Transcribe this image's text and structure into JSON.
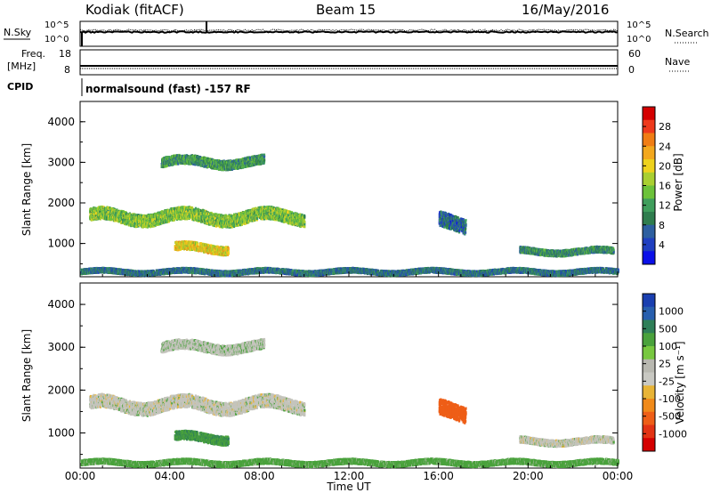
{
  "header": {
    "radar": "Kodiak (fitACF)",
    "beam": "Beam 15",
    "date": "16/May/2016"
  },
  "summary_panels": {
    "nsky": {
      "left_label": "N.Sky",
      "left_ticks": [
        "10^5",
        "10^0"
      ],
      "right_ticks": [
        "10^5",
        "10^0"
      ],
      "right_label": "N.Search"
    },
    "freq": {
      "left_label_1": "Freq.",
      "left_label_2": "[MHz]",
      "left_ticks": [
        "18",
        "8"
      ],
      "right_ticks": [
        "60",
        "0"
      ],
      "right_label": "Nave"
    },
    "cpid": {
      "label": "CPID",
      "text": "normalsound (fast) -157 RF"
    }
  },
  "panels": {
    "power": {
      "ylabel": "Slant Range [km]",
      "colorbar_label": "Power [dB]",
      "colorbar_ticks": [
        "28",
        "24",
        "20",
        "16",
        "12",
        "8",
        "4"
      ],
      "colorbar_colors": [
        "#d40000",
        "#ee3a1c",
        "#f07d14",
        "#f3a81e",
        "#eed21d",
        "#a9cf31",
        "#6cc23a",
        "#3f9e5c",
        "#2f7d4e",
        "#2d5fa0",
        "#1f3fc0",
        "#0b10e8"
      ]
    },
    "velocity": {
      "ylabel": "Slant Range [km]",
      "colorbar_label": "Velocity [m s⁻¹]",
      "colorbar_ticks": [
        "1000",
        "500",
        "100",
        "25",
        "-25",
        "-100",
        "-500",
        "-1000"
      ],
      "colorbar_colors": [
        "#1a3fb0",
        "#285fae",
        "#2f7f58",
        "#4aa23c",
        "#78c840",
        "#b8b8b0",
        "#c8c8c2",
        "#e8b436",
        "#f08a1a",
        "#ee5e17",
        "#e23314",
        "#d40000"
      ]
    }
  },
  "xaxis": {
    "label": "Time UT",
    "ticks": [
      "00:00",
      "04:00",
      "08:00",
      "12:00",
      "16:00",
      "20:00",
      "00:00"
    ]
  },
  "chart_data": {
    "type": "heatmap",
    "title": "Kodiak (fitACF)",
    "xlabel": "Time UT",
    "ylabel": "Slant Range [km]",
    "xlim_hours": [
      0,
      24
    ],
    "ylim_km": [
      180,
      4500
    ],
    "yticks_km": [
      1000,
      2000,
      3000,
      4000
    ],
    "power_colorbar_db": [
      4,
      8,
      12,
      16,
      20,
      24,
      28
    ],
    "velocity_colorbar_ms": [
      -1000,
      -500,
      -100,
      -25,
      25,
      100,
      500,
      1000
    ],
    "echo_regions": [
      {
        "name": "band-1",
        "t_start": 0.4,
        "t_end": 10.0,
        "r_center": 1650,
        "r_width": 300,
        "power_db": 14,
        "velocity_ms": 0
      },
      {
        "name": "band-2",
        "t_start": 3.6,
        "t_end": 8.2,
        "r_center": 3000,
        "r_width": 220,
        "power_db": 10,
        "velocity_ms": 10
      },
      {
        "name": "patch-1",
        "t_start": 4.2,
        "t_end": 6.6,
        "r_center": 880,
        "r_width": 200,
        "power_db": 19,
        "velocity_ms": 90
      },
      {
        "name": "patch-2",
        "t_start": 16.0,
        "t_end": 17.2,
        "r_center": 1500,
        "r_width": 360,
        "power_db": 6,
        "velocity_ms": -150
      },
      {
        "name": "patch-3",
        "t_start": 19.6,
        "t_end": 23.8,
        "r_center": 800,
        "r_width": 140,
        "power_db": 9,
        "velocity_ms": 0
      },
      {
        "name": "ground-strip",
        "t_start": 0.0,
        "t_end": 24.0,
        "r_center": 300,
        "r_width": 110,
        "power_db": 7,
        "velocity_ms": 50
      }
    ]
  }
}
